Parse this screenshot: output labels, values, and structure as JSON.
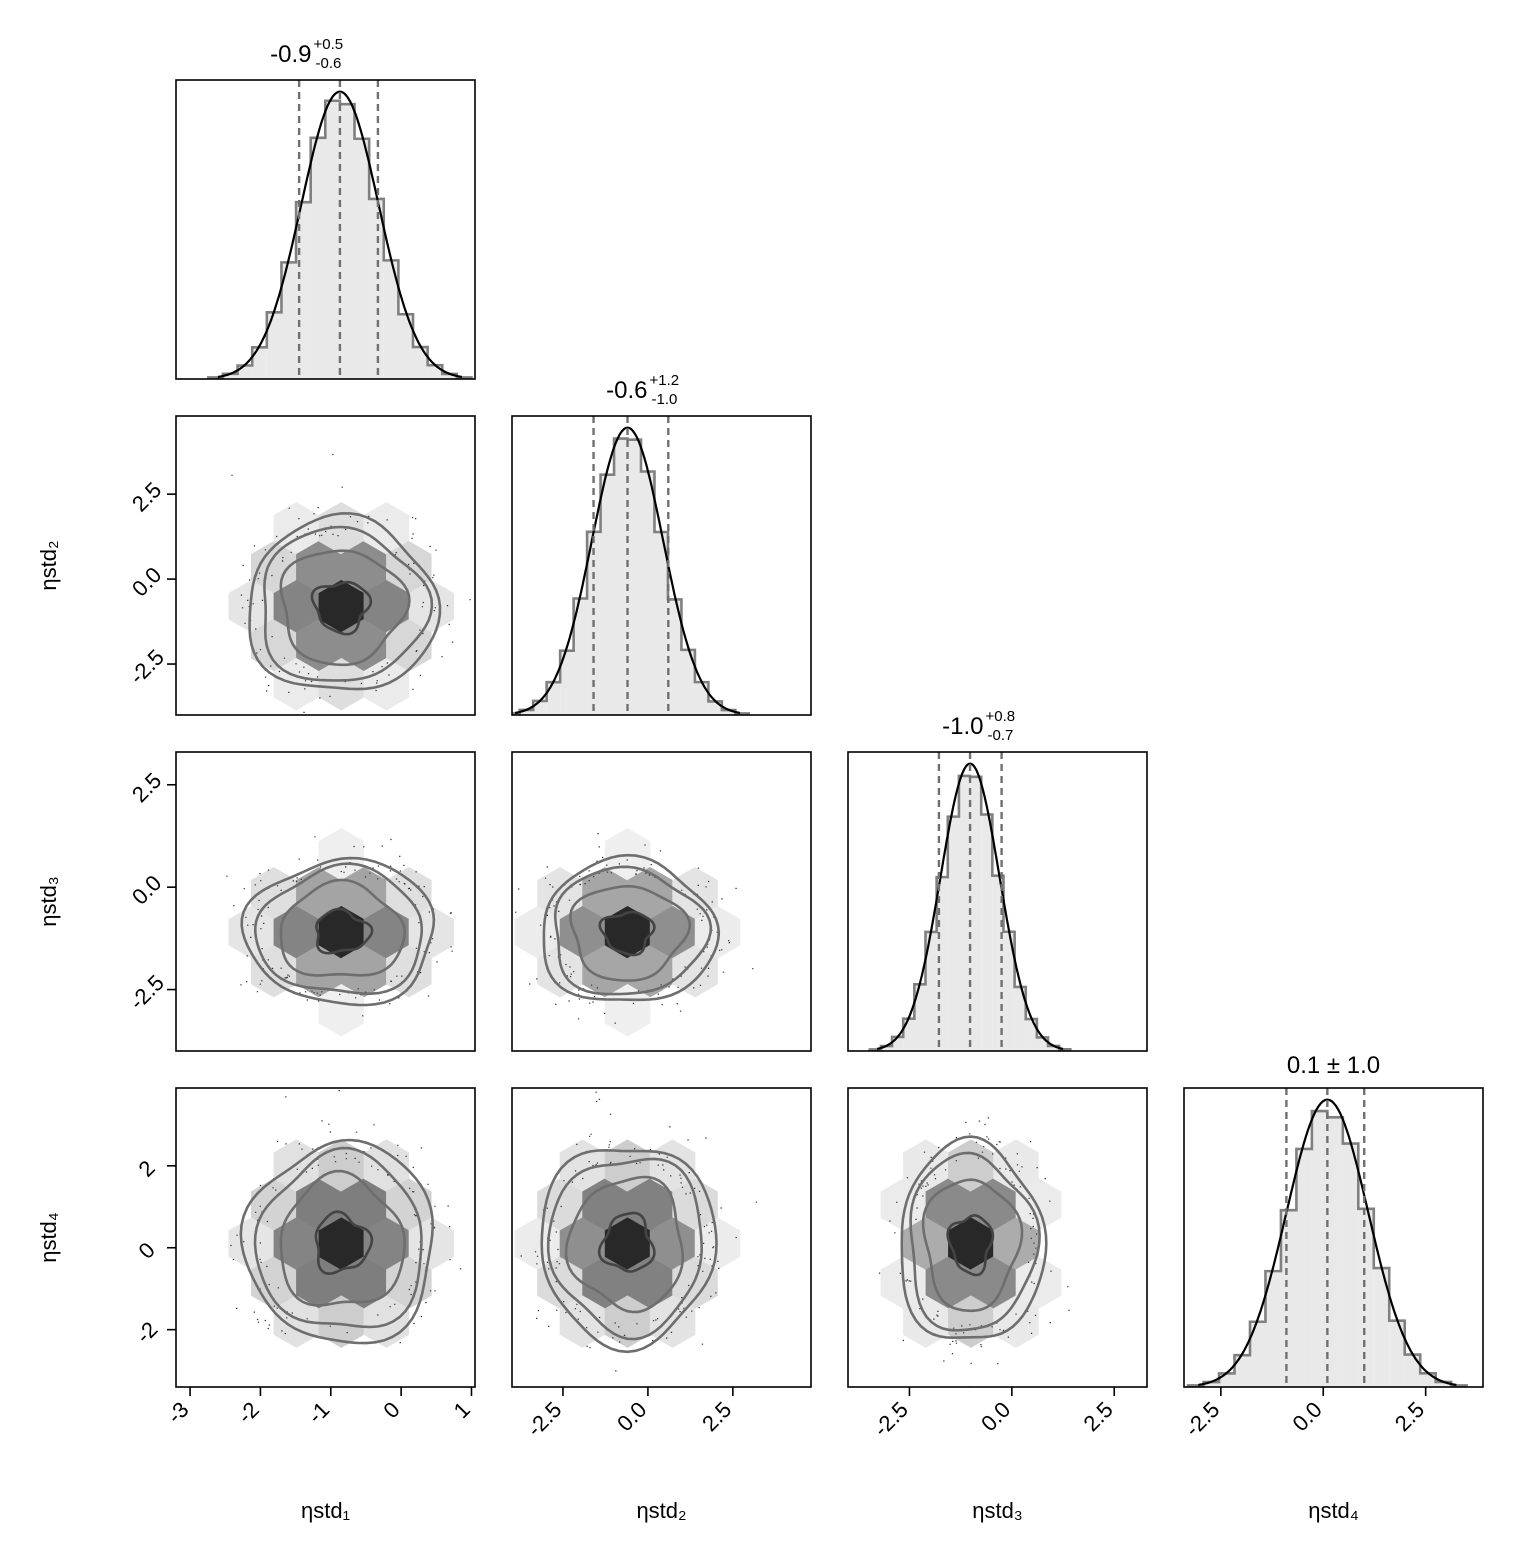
{
  "chart_data": {
    "type": "corner",
    "variables": [
      "ηstd₁",
      "ηstd₂",
      "ηstd₃",
      "ηstd₄"
    ],
    "ranges": [
      [
        -3.2,
        1.05
      ],
      [
        -4.0,
        4.8
      ],
      [
        -4.0,
        3.3
      ],
      [
        -3.4,
        3.9
      ]
    ],
    "ticks": [
      {
        "values": [
          -3,
          -2,
          -1,
          0,
          1
        ],
        "labels": [
          "-3",
          "-2",
          "-1",
          "0",
          "1"
        ]
      },
      {
        "values": [
          -2.5,
          0.0,
          2.5
        ],
        "labels": [
          "-2.5",
          "0.0",
          "2.5"
        ]
      },
      {
        "values": [
          -2.5,
          0.0,
          2.5
        ],
        "labels": [
          "-2.5",
          "0.0",
          "2.5"
        ]
      },
      {
        "values": [
          -2.5,
          0.0,
          2.5
        ],
        "labels": [
          "-2.5",
          "0.0",
          "2.5"
        ]
      }
    ],
    "yticks": [
      null,
      {
        "values": [
          -2.5,
          0.0,
          2.5
        ],
        "labels": [
          "-2.5",
          "0.0",
          "2.5"
        ]
      },
      {
        "values": [
          -2.5,
          0.0,
          2.5
        ],
        "labels": [
          "-2.5",
          "0.0",
          "2.5"
        ]
      },
      {
        "values": [
          -2,
          0,
          2
        ],
        "labels": [
          "-2",
          "0",
          "2"
        ]
      }
    ],
    "marginals": [
      {
        "variable": "ηstd₁",
        "median": -0.9,
        "plus": "+0.5",
        "minus": "-0.6",
        "title": "-0.9",
        "title_plus": "+0.5",
        "title_minus": "-0.6",
        "quantiles": [
          -1.45,
          -0.87,
          -0.33
        ],
        "sd": 0.55
      },
      {
        "variable": "ηstd₂",
        "median": -0.6,
        "plus": "+1.2",
        "minus": "-1.0",
        "title": "-0.6",
        "title_plus": "+1.2",
        "title_minus": "-1.0",
        "quantiles": [
          -1.6,
          -0.6,
          0.6
        ],
        "sd": 1.05
      },
      {
        "variable": "ηstd₃",
        "median": -1.0,
        "plus": "+0.8",
        "minus": "-0.7",
        "title": "-1.0",
        "title_plus": "+0.8",
        "title_minus": "-0.7",
        "quantiles": [
          -1.78,
          -1.02,
          -0.25
        ],
        "sd": 0.72
      },
      {
        "variable": "ηstd₄",
        "median": 0.1,
        "title": "0.1 ± 1.0",
        "quantiles": [
          -0.9,
          0.1,
          1.0
        ],
        "sd": 1.0
      }
    ],
    "joint": [
      {
        "row": 1,
        "col": 0,
        "cx": -0.85,
        "cy": -0.8
      },
      {
        "row": 2,
        "col": 0,
        "cx": -0.85,
        "cy": -1.1
      },
      {
        "row": 2,
        "col": 1,
        "cx": -0.6,
        "cy": -1.1
      },
      {
        "row": 3,
        "col": 0,
        "cx": -0.85,
        "cy": 0.1
      },
      {
        "row": 3,
        "col": 1,
        "cx": -0.6,
        "cy": 0.1
      },
      {
        "row": 3,
        "col": 2,
        "cx": -1.0,
        "cy": 0.1
      }
    ],
    "grid": false,
    "legend": "none",
    "colors": {
      "hist_fill": "#e9e9e9",
      "hist_step": "#808080",
      "kde": "#000000",
      "quantile": "#707070",
      "contour": "#6e6e6e"
    }
  }
}
